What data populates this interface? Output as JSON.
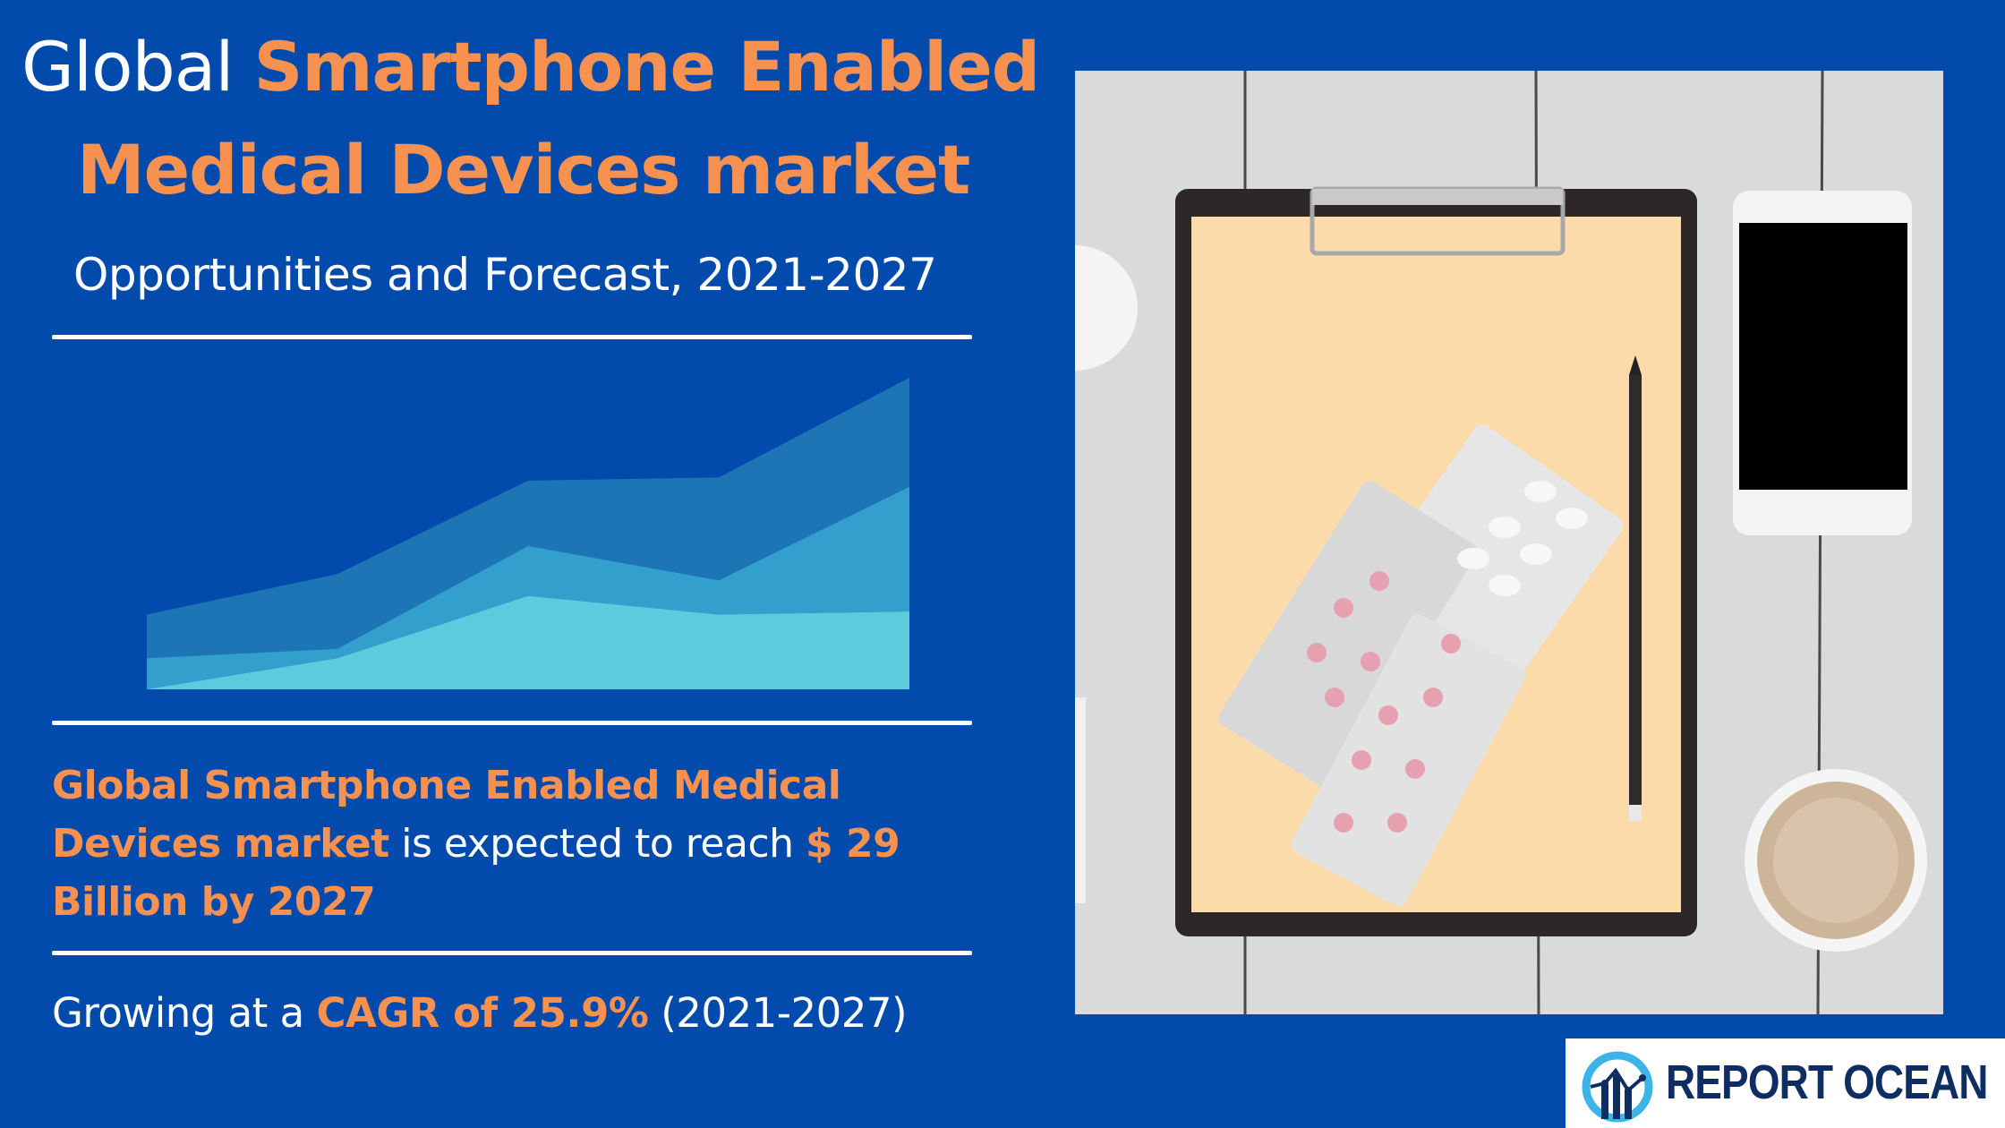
{
  "header": {
    "title_prefix": "Global",
    "title_highlight_line1": "Smartphone Enabled",
    "title_highlight_line2": "Medical Devices market",
    "subtitle": "Opportunities and Forecast, 2021-2027"
  },
  "summary": {
    "market_name": "Global Smartphone Enabled Medical Devices market",
    "middle_text": " is expected to reach ",
    "value": "$ 29 Billion by 2027"
  },
  "growth": {
    "prefix": "Growing at a ",
    "cagr": "CAGR of 25.9%",
    "period": " (2021-2027)"
  },
  "logo": {
    "text": "REPORT OCEAN"
  },
  "photo": {
    "description": "Clipboard with pills, pencil, smartphone and coffee cup on white wooden table"
  },
  "colors": {
    "background": "#024bad",
    "accent": "#f7914f",
    "text": "#ffffff",
    "series_top": "#1e75b5",
    "series_middle": "#339fcc",
    "series_bottom": "#5ccbdd",
    "logo_text": "#0e2d63"
  },
  "chart_data": {
    "type": "area",
    "stacked": true,
    "title": "",
    "xlabel": "",
    "ylabel": "",
    "grid": false,
    "legend": "none",
    "x": [
      1,
      2,
      3,
      4,
      5
    ],
    "ylim": [
      0,
      100
    ],
    "series": [
      {
        "name": "Bottom layer",
        "color": "#5ccbdd",
        "values": [
          0,
          10,
          30,
          24,
          25
        ]
      },
      {
        "name": "Middle layer",
        "color": "#339fcc",
        "values": [
          10,
          3,
          16,
          11,
          40
        ]
      },
      {
        "name": "Top layer",
        "color": "#1e75b5",
        "values": [
          14,
          24,
          21,
          33,
          35
        ]
      }
    ]
  }
}
